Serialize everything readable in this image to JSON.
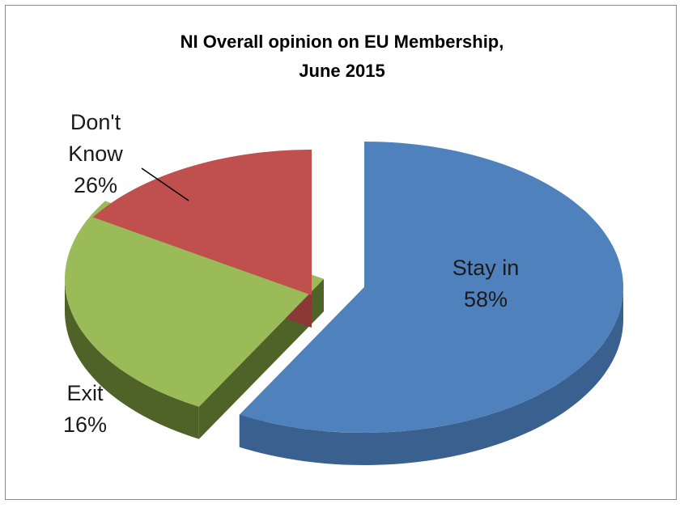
{
  "chart_data": {
    "type": "pie",
    "style": "3d-exploded",
    "title_lines": [
      "NI  Overall opinion on EU Membership,",
      "June 2015"
    ],
    "slices": [
      {
        "label_lines": [
          "Stay in"
        ],
        "value": 58,
        "value_label": "58%",
        "color": "#4f81bd",
        "side_color": "#3a6090",
        "label_color": "#1a1a1a"
      },
      {
        "label_lines": [
          "Don't",
          "Know"
        ],
        "value": 26,
        "value_label": "26%",
        "color": "#9bbb59",
        "side_color": "#4f6228",
        "label_color": "#1a1a1a"
      },
      {
        "label_lines": [
          "Exit"
        ],
        "value": 16,
        "value_label": "16%",
        "color": "#c0504d",
        "side_color": "#8c3836",
        "label_color": "#1a1a1a"
      }
    ]
  }
}
